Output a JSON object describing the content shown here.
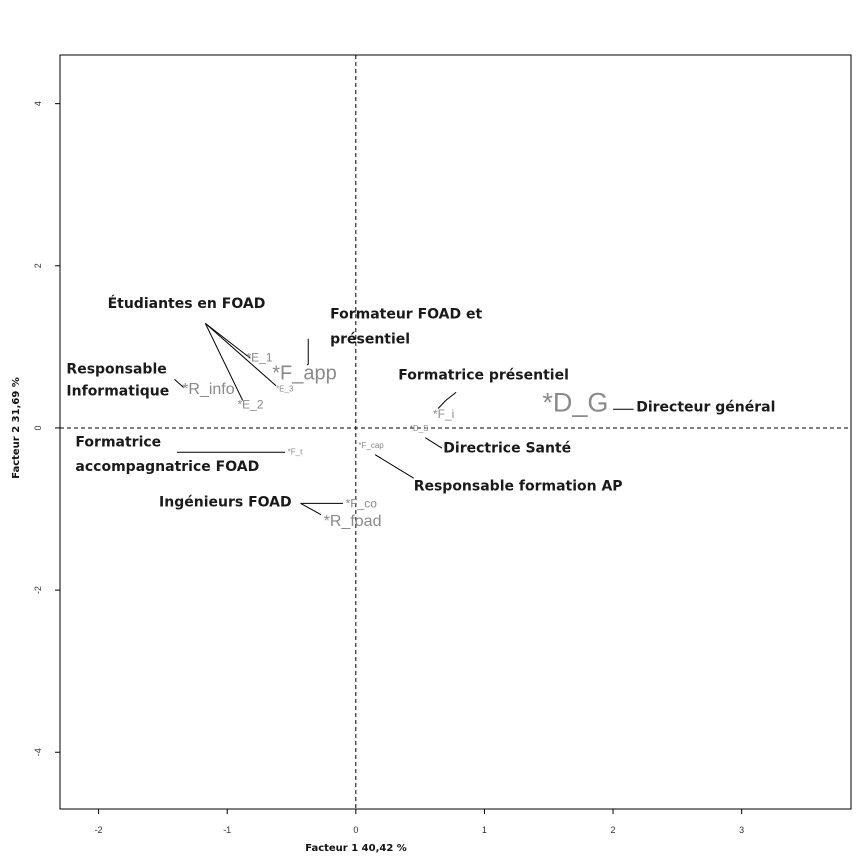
{
  "chart_data": {
    "type": "scatter",
    "xlabel": "Facteur 1  40,42 %",
    "ylabel": "Facteur 2  31,69 %",
    "xlim": [
      -2.3,
      3.85
    ],
    "ylim": [
      -4.7,
      4.6
    ],
    "x_ticks": [
      -2,
      -1,
      0,
      1,
      2,
      3
    ],
    "y_ticks": [
      -4,
      -2,
      0,
      2,
      4
    ],
    "grid": false,
    "reference_lines": {
      "x": 0,
      "y": 0,
      "style": "dashed"
    },
    "points": [
      {
        "label": "*D_G",
        "x": 1.45,
        "y": 0.2,
        "size": "xlarge",
        "color": "#7a7a7a"
      },
      {
        "label": "*F_app",
        "x": -0.65,
        "y": 0.6,
        "size": "large",
        "color": "#bdbdbd"
      },
      {
        "label": "*R_info",
        "x": -1.35,
        "y": 0.42,
        "size": "medium",
        "color": "#8a8a8a"
      },
      {
        "label": "*E_1",
        "x": -0.85,
        "y": 0.82,
        "size": "small",
        "color": "#9a9a9a"
      },
      {
        "label": "*E_3",
        "x": -0.62,
        "y": 0.45,
        "size": "tiny",
        "color": "#9a9a9a"
      },
      {
        "label": "*E_2",
        "x": -0.92,
        "y": 0.24,
        "size": "small",
        "color": "#9a9a9a"
      },
      {
        "label": "*F_i",
        "x": 0.6,
        "y": 0.12,
        "size": "small",
        "color": "#9a9a9a"
      },
      {
        "label": "*D_S",
        "x": 0.42,
        "y": -0.04,
        "size": "tiny",
        "color": "#9a9a9a"
      },
      {
        "label": "*F_t",
        "x": -0.53,
        "y": -0.33,
        "size": "tiny",
        "color": "#bdbdbd"
      },
      {
        "label": "*F_cap",
        "x": 0.02,
        "y": -0.25,
        "size": "tiny",
        "color": "#7a7a7a"
      },
      {
        "label": "*F_co",
        "x": -0.08,
        "y": -0.98,
        "size": "small",
        "color": "#c6c6c6"
      },
      {
        "label": "*R_foad",
        "x": -0.25,
        "y": -1.21,
        "size": "medium",
        "color": "#bdbdbd"
      }
    ],
    "annotations": [
      {
        "text": "Étudiantes en FOAD",
        "x": -1.93,
        "y": 1.48
      },
      {
        "text": "Formateur FOAD et",
        "x": -0.2,
        "y": 1.35
      },
      {
        "text": "présentiel",
        "x": -0.2,
        "y": 1.04
      },
      {
        "text": "Responsable",
        "x": -2.25,
        "y": 0.67
      },
      {
        "text": "Informatique",
        "x": -2.25,
        "y": 0.4
      },
      {
        "text": "Formatrice présentiel",
        "x": 0.33,
        "y": 0.6
      },
      {
        "text": "Directeur général",
        "x": 2.18,
        "y": 0.2
      },
      {
        "text": "Formatrice",
        "x": -2.18,
        "y": -0.23
      },
      {
        "text": "accompagnatrice FOAD",
        "x": -2.18,
        "y": -0.53
      },
      {
        "text": "Directrice Santé",
        "x": 0.68,
        "y": -0.3
      },
      {
        "text": "Responsable formation AP",
        "x": 0.45,
        "y": -0.77
      },
      {
        "text": "Ingénieurs FOAD",
        "x": -1.53,
        "y": -0.97
      }
    ],
    "leader_lines": [
      {
        "from": [
          -1.17,
          1.29
        ],
        "to": [
          -0.82,
          0.86
        ]
      },
      {
        "from": [
          -1.17,
          1.29
        ],
        "to": [
          -0.62,
          0.52
        ]
      },
      {
        "from": [
          -1.17,
          1.29
        ],
        "to": [
          -0.88,
          0.34
        ]
      },
      {
        "from": [
          -0.37,
          1.1
        ],
        "to": [
          -0.37,
          0.78
        ]
      },
      {
        "from": [
          -0.37,
          0.78
        ],
        "to": [
          -0.38,
          0.78
        ]
      },
      {
        "from": [
          -1.41,
          0.6
        ],
        "to": [
          -1.34,
          0.5
        ]
      },
      {
        "from": [
          0.78,
          0.44
        ],
        "to": [
          0.7,
          0.34
        ]
      },
      {
        "from": [
          0.7,
          0.34
        ],
        "to": [
          0.64,
          0.24
        ]
      },
      {
        "from": [
          2.0,
          0.23
        ],
        "to": [
          2.16,
          0.23
        ]
      },
      {
        "from": [
          0.54,
          -0.12
        ],
        "to": [
          0.67,
          -0.25
        ]
      },
      {
        "from": [
          0.15,
          -0.33
        ],
        "to": [
          0.45,
          -0.62
        ]
      },
      {
        "from": [
          -1.39,
          -0.3
        ],
        "to": [
          -0.55,
          -0.3
        ]
      },
      {
        "from": [
          -0.43,
          -0.93
        ],
        "to": [
          -0.1,
          -0.93
        ]
      },
      {
        "from": [
          -0.43,
          -0.93
        ],
        "to": [
          -0.27,
          -1.07
        ]
      }
    ]
  }
}
